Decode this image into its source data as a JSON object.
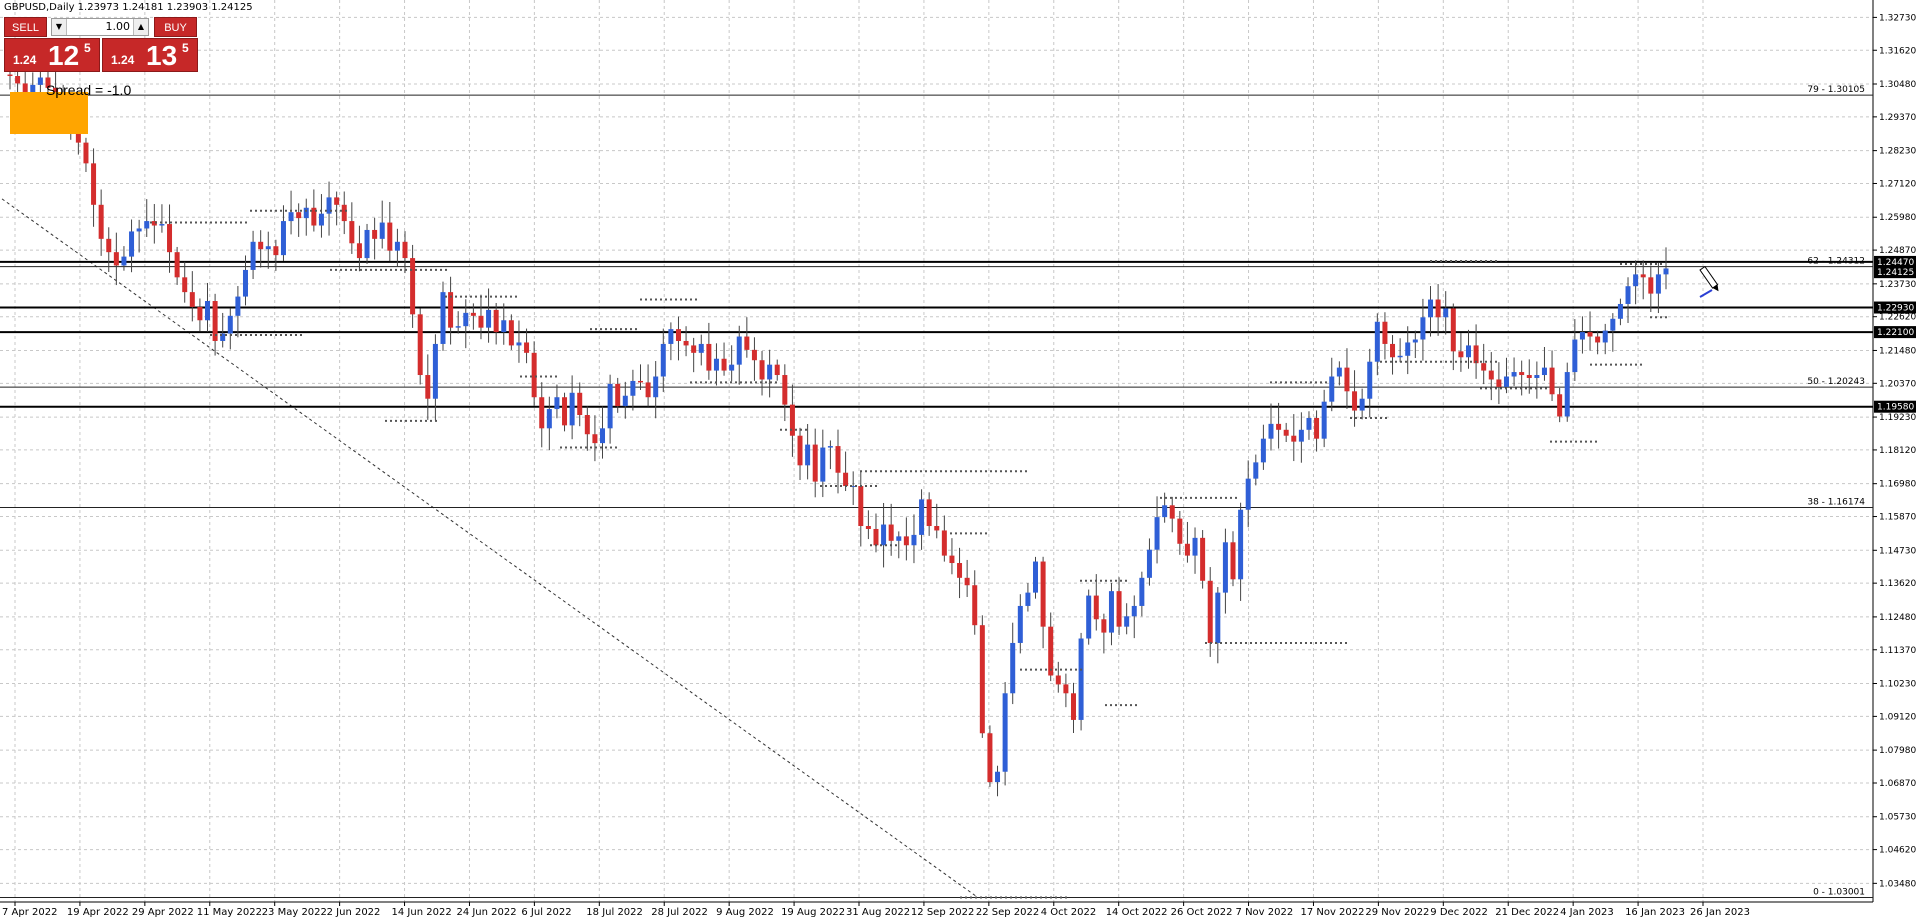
{
  "header": {
    "symbol_info": "GBPUSD,Daily  1.23973 1.24181 1.23903 1.24125"
  },
  "trade_panel": {
    "sell_label": "SELL",
    "buy_label": "BUY",
    "lot_value": "1.00",
    "sell_small": "1.24",
    "sell_big": "12",
    "sell_sup": "5",
    "buy_small": "1.24",
    "buy_big": "13",
    "buy_sup": "5",
    "spread": "Spread = -1.0"
  },
  "colors": {
    "bull": "#2f5fd6",
    "bear": "#d42d2d",
    "grid": "#c8c8c8",
    "level_box": "#000000",
    "orange": "#ffa500"
  },
  "chart_data": {
    "type": "candlestick",
    "symbol": "GBPUSD",
    "timeframe": "Daily",
    "ylim": [
      1.0285,
      1.3325
    ],
    "y_ticks": [
      "1.32730",
      "1.31620",
      "1.30480",
      "1.29370",
      "1.28230",
      "1.27120",
      "1.25980",
      "1.24870",
      "1.23730",
      "1.22620",
      "1.21480",
      "1.20370",
      "1.19230",
      "1.18120",
      "1.16980",
      "1.15870",
      "1.14730",
      "1.13620",
      "1.12480",
      "1.11370",
      "1.10230",
      "1.09120",
      "1.07980",
      "1.06870",
      "1.05730",
      "1.04620",
      "1.03480"
    ],
    "x_labels": [
      "7 Apr 2022",
      "19 Apr 2022",
      "29 Apr 2022",
      "11 May 2022",
      "23 May 2022",
      "2 Jun 2022",
      "14 Jun 2022",
      "24 Jun 2022",
      "6 Jul 2022",
      "18 Jul 2022",
      "28 Jul 2022",
      "9 Aug 2022",
      "19 Aug 2022",
      "31 Aug 2022",
      "12 Sep 2022",
      "22 Sep 2022",
      "4 Oct 2022",
      "14 Oct 2022",
      "26 Oct 2022",
      "7 Nov 2022",
      "17 Nov 2022",
      "29 Nov 2022",
      "9 Dec 2022",
      "21 Dec 2022",
      "4 Jan 2023",
      "16 Jan 2023",
      "26 Jan 2023"
    ],
    "fib_levels": [
      {
        "label": "79 - 1.30105",
        "value": 1.30105
      },
      {
        "label": "62 - 1.24312",
        "value": 1.24312
      },
      {
        "label": "50 - 1.20243",
        "value": 1.20243
      },
      {
        "label": "38 - 1.16174",
        "value": 1.16174
      },
      {
        "label": "0 - 1.03001",
        "value": 1.03001
      }
    ],
    "horizontal_lines": [
      1.2447,
      1.2293,
      1.221,
      1.1958
    ],
    "price_tags": [
      {
        "label": "1.24470",
        "value": 1.2447
      },
      {
        "label": "1.24125",
        "value": 1.24125
      },
      {
        "label": "1.22930",
        "value": 1.2293
      },
      {
        "label": "1.22100",
        "value": 1.221
      },
      {
        "label": "1.19580",
        "value": 1.1958
      }
    ],
    "closes": [
      1.3075,
      1.305,
      1.302,
      1.3045,
      1.307,
      1.3035,
      1.3,
      1.295,
      1.2895,
      1.285,
      1.278,
      1.264,
      1.2525,
      1.248,
      1.2435,
      1.2465,
      1.255,
      1.256,
      1.2585,
      1.257,
      1.2575,
      1.248,
      1.2395,
      1.2345,
      1.2295,
      1.225,
      1.2315,
      1.218,
      1.2205,
      1.2265,
      1.233,
      1.242,
      1.2515,
      1.249,
      1.25,
      1.247,
      1.2585,
      1.2615,
      1.2595,
      1.263,
      1.257,
      1.261,
      1.2665,
      1.264,
      1.2585,
      1.251,
      1.246,
      1.2555,
      1.2525,
      1.258,
      1.2485,
      1.2515,
      1.246,
      1.227,
      1.2065,
      1.1985,
      1.217,
      1.2345,
      1.2225,
      1.223,
      1.2275,
      1.2265,
      1.2225,
      1.2285,
      1.221,
      1.225,
      1.2165,
      1.2175,
      1.214,
      1.199,
      1.1885,
      1.195,
      1.199,
      1.1895,
      1.2005,
      1.193,
      1.1865,
      1.1835,
      1.1885,
      1.2035,
      1.196,
      1.1995,
      1.2045,
      1.204,
      1.199,
      1.206,
      1.217,
      1.222,
      1.218,
      1.2165,
      1.214,
      1.217,
      1.208,
      1.212,
      1.208,
      1.21,
      1.2195,
      1.215,
      1.2115,
      1.205,
      1.21,
      1.2065,
      1.1965,
      1.186,
      1.176,
      1.183,
      1.1705,
      1.182,
      1.1825,
      1.1735,
      1.169,
      1.169,
      1.1555,
      1.1545,
      1.149,
      1.156,
      1.1505,
      1.152,
      1.149,
      1.1525,
      1.1645,
      1.1555,
      1.154,
      1.1455,
      1.143,
      1.138,
      1.1355,
      1.122,
      1.0855,
      1.069,
      1.0725,
      1.099,
      1.116,
      1.1285,
      1.133,
      1.1435,
      1.1215,
      1.105,
      1.102,
      1.099,
      1.09,
      1.1175,
      1.132,
      1.124,
      1.1195,
      1.1335,
      1.1215,
      1.125,
      1.1285,
      1.138,
      1.1475,
      1.1585,
      1.1625,
      1.158,
      1.1495,
      1.1455,
      1.1515,
      1.137,
      1.116,
      1.133,
      1.15,
      1.1375,
      1.161,
      1.1715,
      1.177,
      1.185,
      1.19,
      1.188,
      1.186,
      1.184,
      1.188,
      1.192,
      1.185,
      1.1975,
      1.206,
      1.209,
      1.201,
      1.1945,
      1.1985,
      1.211,
      1.2245,
      1.217,
      1.2125,
      1.213,
      1.2175,
      1.2185,
      1.226,
      1.232,
      1.226,
      1.229,
      1.2145,
      1.2125,
      1.2165,
      1.2105,
      1.208,
      1.205,
      1.2025,
      1.206,
      1.2075,
      1.2065,
      1.2055,
      1.2065,
      1.209,
      1.2,
      1.1925,
      1.2075,
      1.2185,
      1.221,
      1.2195,
      1.2175,
      1.2215,
      1.2255,
      1.2305,
      1.2365,
      1.2405,
      1.2395,
      1.234,
      1.2405,
      1.2425
    ]
  }
}
